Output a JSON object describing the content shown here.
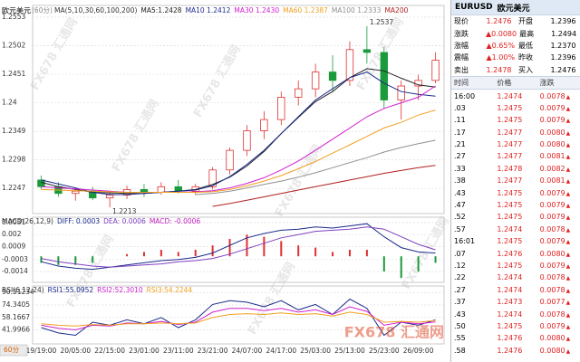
{
  "chart_data": [
    {
      "type": "candlestick",
      "title": "欧元美元",
      "period": "(60分)",
      "indicator": "MA(5,10,30,60,100,200)",
      "categories": [
        "19/19:00",
        null,
        "20/05:00",
        null,
        "22/15:00",
        null,
        "23/01:00",
        null,
        "23/11:00",
        null,
        "23/21:00",
        null,
        "24/07:00",
        null,
        "24/17:00",
        null,
        "25/03:00",
        null,
        "25/13:00",
        null,
        "25/23:00",
        null,
        "26/09:00",
        null
      ],
      "open": [
        1.2262,
        1.225,
        1.2238,
        1.2242,
        1.223,
        1.2235,
        1.2245,
        1.224,
        1.225,
        1.2242,
        1.225,
        1.228,
        1.2315,
        1.235,
        1.237,
        1.241,
        1.2425,
        1.2455,
        1.244,
        1.2495,
        1.249,
        1.2405,
        1.243,
        1.244
      ],
      "high": [
        1.227,
        1.2258,
        1.2248,
        1.225,
        1.224,
        1.2252,
        1.2255,
        1.2258,
        1.2262,
        1.2255,
        1.2285,
        1.232,
        1.236,
        1.2385,
        1.242,
        1.244,
        1.247,
        1.2485,
        1.251,
        1.2537,
        1.25,
        1.244,
        1.245,
        1.249
      ],
      "low": [
        1.2245,
        1.2232,
        1.2225,
        1.2226,
        1.2213,
        1.2228,
        1.2232,
        1.2236,
        1.2238,
        1.2235,
        1.2245,
        1.2272,
        1.2305,
        1.2335,
        1.236,
        1.2395,
        1.241,
        1.242,
        1.243,
        1.247,
        1.239,
        1.237,
        1.2405,
        1.2435
      ],
      "close": [
        1.225,
        1.2238,
        1.2242,
        1.223,
        1.2235,
        1.2245,
        1.224,
        1.225,
        1.2242,
        1.225,
        1.228,
        1.2315,
        1.235,
        1.237,
        1.241,
        1.2425,
        1.2455,
        1.244,
        1.2495,
        1.249,
        1.2405,
        1.243,
        1.244,
        1.2476
      ],
      "up_color": "#e03030",
      "down_color": "#1a9a3a",
      "series": [
        {
          "name": "MA5:1.2428",
          "color": "#222222",
          "values": [
            1.2258,
            1.225,
            1.2245,
            1.224,
            1.2239,
            1.2238,
            1.2238,
            1.224,
            1.2242,
            1.2245,
            1.2254,
            1.2267,
            1.2287,
            1.2313,
            1.2345,
            1.2374,
            1.2402,
            1.242,
            1.2445,
            1.2461,
            1.2457,
            1.2444,
            1.2432,
            1.2428
          ]
        },
        {
          "name": "MA10 1.2412",
          "color": "#1c2a8c",
          "values": [
            1.2262,
            1.2255,
            1.2248,
            1.224,
            1.2236,
            1.2236,
            1.2238,
            1.224,
            1.2242,
            1.2244,
            1.2252,
            1.2268,
            1.229,
            1.2315,
            1.2345,
            1.2375,
            1.2405,
            1.2425,
            1.2445,
            1.2455,
            1.2435,
            1.242,
            1.2415,
            1.2412
          ]
        },
        {
          "name": "MA30 1.2430",
          "color": "#d020d0",
          "values": [
            1.225,
            1.2248,
            1.2246,
            1.2244,
            1.2242,
            1.224,
            1.224,
            1.224,
            1.224,
            1.2241,
            1.2243,
            1.2248,
            1.2256,
            1.2266,
            1.228,
            1.2296,
            1.2315,
            1.2335,
            1.2355,
            1.2375,
            1.239,
            1.24,
            1.241,
            1.243
          ]
        },
        {
          "name": "MA60 1.2387",
          "color": "#f0a020",
          "values": [
            1.2245,
            1.2244,
            1.2243,
            1.2242,
            1.2241,
            1.224,
            1.224,
            1.224,
            1.224,
            1.224,
            1.2241,
            1.2245,
            1.2252,
            1.226,
            1.227,
            1.2282,
            1.2295,
            1.231,
            1.2325,
            1.234,
            1.2355,
            1.2365,
            1.2378,
            1.2387
          ]
        },
        {
          "name": "MA100 1.2333",
          "color": "#909090",
          "values": [
            null,
            null,
            null,
            null,
            null,
            null,
            null,
            null,
            null,
            1.2236,
            1.2238,
            1.2242,
            1.2248,
            1.2254,
            1.226,
            1.2267,
            1.2275,
            1.2284,
            1.2293,
            1.2302,
            1.2312,
            1.232,
            1.2327,
            1.2333
          ]
        },
        {
          "name": "MA200",
          "color": "#b02020",
          "values": [
            null,
            null,
            null,
            null,
            null,
            null,
            null,
            null,
            null,
            null,
            1.2215,
            1.222,
            1.2226,
            1.2232,
            1.2238,
            1.2244,
            1.225,
            1.2256,
            1.2262,
            1.2268,
            1.2274,
            1.2279,
            1.2284,
            1.2288
          ]
        }
      ],
      "annotations": [
        {
          "value": 1.2537,
          "index": 19
        },
        {
          "value": 1.2213,
          "index": 4
        }
      ],
      "ylim": [
        1.2202,
        1.2574
      ],
      "yticks": [
        1.2553,
        1.2502,
        1.2451,
        1.24,
        1.2349,
        1.2298,
        1.2247
      ],
      "grid": true
    },
    {
      "type": "combo",
      "indicator": "MACD(26,12,9)",
      "up_color": "#e03030",
      "down_color": "#1a9a3a",
      "histogram": {
        "name": "MACD: -0.0006",
        "color": "#c020c0",
        "values": [
          -0.0006,
          -0.0008,
          -0.0008,
          -0.0006,
          0,
          0.0002,
          0.0004,
          0.0006,
          0.0004,
          0.0006,
          0.001,
          0.0016,
          0.002,
          0.0018,
          0.0014,
          0.001,
          0.0008,
          0.0004,
          0.0006,
          0.0006,
          -0.0014,
          -0.002,
          -0.0014,
          -0.0006
        ]
      },
      "series": [
        {
          "name": "DIFF: 0.0003",
          "color": "#1c2a8c",
          "values": [
            -0.0005,
            -0.0009,
            -0.0011,
            -0.0012,
            -0.001,
            -0.0008,
            -0.0006,
            -0.0004,
            -0.0003,
            -0.0001,
            0.0003,
            0.001,
            0.0017,
            0.0021,
            0.0024,
            0.0025,
            0.0027,
            0.0026,
            0.0028,
            0.003,
            0.0018,
            0.0008,
            0.0004,
            0.0003
          ]
        },
        {
          "name": "DEA: 0.0006",
          "color": "#8040c0",
          "values": [
            -0.0002,
            -0.0005,
            -0.0007,
            -0.0009,
            -0.001,
            -0.0009,
            -0.0008,
            -0.0007,
            -0.0005,
            -0.0004,
            -0.0002,
            0.0002,
            0.0007,
            0.0012,
            0.0017,
            0.002,
            0.0023,
            0.0024,
            0.0025,
            0.0027,
            0.0025,
            0.0018,
            0.0011,
            0.0006
          ]
        }
      ],
      "ylim": [
        -0.0024,
        0.0036
      ],
      "yticks": [
        0.0031,
        0.002,
        0.0009,
        -0.0003,
        -0.0014
      ],
      "grid": true
    },
    {
      "type": "line",
      "indicator": "RSI(6,12,24)",
      "period_tab": "60分",
      "series": [
        {
          "name": "RSI1:55.0952",
          "color": "#1c2a8c",
          "values": [
            45,
            38,
            35,
            52,
            48,
            55,
            50,
            58,
            45,
            55,
            75,
            80,
            78,
            72,
            80,
            68,
            75,
            62,
            82,
            70,
            35,
            52,
            48,
            55.0952
          ]
        },
        {
          "name": "RSI2:52.3010",
          "color": "#d020d0",
          "values": [
            48,
            44,
            42,
            48,
            47,
            51,
            50,
            53,
            49,
            52,
            65,
            70,
            70,
            67,
            70,
            65,
            68,
            62,
            72,
            66,
            48,
            52,
            50,
            52.301
          ]
        },
        {
          "name": "RSI3:54.2244",
          "color": "#f0a020",
          "values": [
            50,
            48,
            47,
            49,
            48,
            50,
            50,
            51,
            50,
            51,
            58,
            62,
            63,
            62,
            64,
            62,
            63,
            60,
            65,
            62,
            52,
            53,
            52,
            54.2244
          ]
        }
      ],
      "ylim": [
        23.8,
        99
      ],
      "yticks": [
        90.51234,
        74.3405,
        58.1667,
        41.9966
      ],
      "grid": true
    }
  ],
  "watermark": "FX678 汇通网",
  "quote": {
    "symbol": "EURUSD",
    "name": "欧元美元",
    "summary": [
      [
        "现价",
        "1.2476",
        "开盘",
        "1.2396"
      ],
      [
        "涨跌",
        "▲0.0080",
        "最高",
        "1.2494"
      ],
      [
        "涨幅",
        "▲0.65%",
        "最低",
        "1.2370"
      ],
      [
        "震幅",
        "▲1.00%",
        "昨收",
        "1.2396"
      ],
      [
        "卖出",
        "1.2478",
        "买入",
        "1.2476"
      ]
    ],
    "ticks_header": [
      "时间",
      "价格",
      "涨跌"
    ],
    "ticks": [
      [
        "16:00",
        "1.2474",
        "0.0078"
      ],
      [
        ".03",
        "1.2475",
        "0.0079"
      ],
      [
        ".11",
        "1.2475",
        "0.0079"
      ],
      [
        ".17",
        "1.2477",
        "0.0080"
      ],
      [
        ".21",
        "1.2477",
        "0.0080"
      ],
      [
        ".27",
        "1.2477",
        "0.0081"
      ],
      [
        ".33",
        "1.2478",
        "0.0082"
      ],
      [
        ".38",
        "1.2477",
        "0.0081"
      ],
      [
        ".43",
        "1.2475",
        "0.0079"
      ],
      [
        ".47",
        "1.2475",
        "0.0079"
      ],
      [
        ".52",
        "1.2475",
        "0.0079"
      ],
      [
        ".57",
        "1.2474",
        "0.0078"
      ],
      [
        "16:01",
        "1.2475",
        "0.0079"
      ],
      [
        ".07",
        "1.2476",
        "0.0080"
      ],
      [
        ".12",
        "1.2475",
        "0.0079"
      ],
      [
        ".22",
        "1.2474",
        "0.0078"
      ],
      [
        ".27",
        "1.2474",
        "0.0078"
      ],
      [
        ".37",
        "1.2473",
        "0.0077"
      ],
      [
        ".43",
        "1.2474",
        "0.0078"
      ],
      [
        ".50",
        "1.2475",
        "0.0079"
      ],
      [
        ".55",
        "1.2476",
        "0.0080"
      ],
      [
        ".58",
        "1.2476",
        "0.0080"
      ]
    ]
  }
}
